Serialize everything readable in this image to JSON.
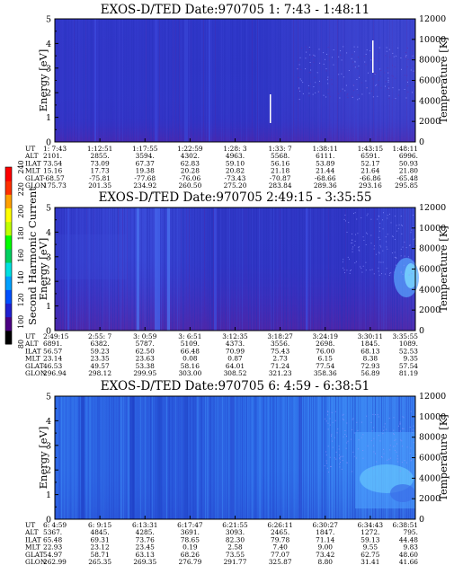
{
  "colors": {
    "background": "#ffffff",
    "spectrogram_base": "#2a2fc8",
    "spectrogram_low": "#5a1fa0",
    "spectrogram_bright": "#2e78f0",
    "line_white": "#ffffff"
  },
  "colorbar": {
    "label": "Second Harmonic Current",
    "ticks": [
      "240",
      "220",
      "200",
      "180",
      "160",
      "140",
      "120",
      "100",
      "80"
    ],
    "min": 80,
    "max": 240,
    "colors": [
      "#000000",
      "#4b0082",
      "#2020d0",
      "#0050ff",
      "#00a0ff",
      "#00e0e0",
      "#00d060",
      "#00ff00",
      "#c0ff00",
      "#ffff00",
      "#ffa000",
      "#ff3000",
      "#ff0000"
    ]
  },
  "chart_data": [
    {
      "type": "heatmap",
      "title": "EXOS-D/TED   Date:970705   1: 7:43 - 1:48:11",
      "ylabel": "Energy [eV]",
      "y2label": "Temperature [K]",
      "ylim": [
        0,
        5
      ],
      "y2lim": [
        0,
        12000
      ],
      "yticks": [
        "0",
        "1",
        "2",
        "3",
        "4",
        "5"
      ],
      "y2ticks": [
        "0",
        "2000",
        "4000",
        "6000",
        "8000",
        "10000",
        "12000"
      ],
      "table_labels": [
        "UT",
        "ALT",
        "ILAT",
        "MLT",
        "GLAT",
        "GLON"
      ],
      "table_columns": [
        [
          "1: 7:43",
          "2101.",
          "73.54",
          "15.16",
          "-68.57",
          "175.73"
        ],
        [
          "1:12:51",
          "2855.",
          "73.09",
          "17.73",
          "-75.81",
          "201.35"
        ],
        [
          "1:17:55",
          "3594.",
          "67.37",
          "19.38",
          "-77.68",
          "234.92"
        ],
        [
          "1:22:59",
          "4302.",
          "62.83",
          "20.28",
          "-76.06",
          "260.50"
        ],
        [
          "1:28: 3",
          "4963.",
          "59.10",
          "20.82",
          "-73.43",
          "275.20"
        ],
        [
          "1:33: 7",
          "5568.",
          "56.16",
          "21.18",
          "-70.87",
          "283.84"
        ],
        [
          "1:38:11",
          "6111.",
          "53.89",
          "21.44",
          "-68.66",
          "289.36"
        ],
        [
          "1:43:15",
          "6591.",
          "52.17",
          "21.64",
          "-66.86",
          "293.16"
        ],
        [
          "1:48:11",
          "6996.",
          "50.93",
          "21.80",
          "-65.48",
          "295.85"
        ]
      ],
      "temperature_trace": [
        {
          "t": "1:33: 7",
          "y_from": 0.2,
          "y_to": 1.7,
          "segment": "short"
        },
        {
          "t": "1:44:20",
          "y_from": 3.0,
          "y_to": 4.6,
          "segment": "short"
        }
      ]
    },
    {
      "type": "heatmap",
      "title": "EXOS-D/TED   Date:970705   2:49:15 - 3:35:55",
      "ylabel": "Energy [eV]",
      "y2label": "Temperature [K]",
      "ylim": [
        0,
        5
      ],
      "y2lim": [
        0,
        12000
      ],
      "yticks": [
        "0",
        "1",
        "2",
        "3",
        "4",
        "5"
      ],
      "y2ticks": [
        "0",
        "2000",
        "4000",
        "6000",
        "8000",
        "10000",
        "12000"
      ],
      "table_labels": [
        "UT",
        "ALT",
        "ILAT",
        "MLT",
        "GLAT",
        "GLON"
      ],
      "table_columns": [
        [
          "2:49:15",
          "6891.",
          "56.57",
          "23.14",
          "46.53",
          "296.94"
        ],
        [
          "2:55: 7",
          "6382.",
          "59.23",
          "23.35",
          "49.57",
          "298.12"
        ],
        [
          "3: 0:59",
          "5787.",
          "62.50",
          "23.63",
          "53.38",
          "299.95"
        ],
        [
          "3: 6:51",
          "5109.",
          "66.48",
          "0.08",
          "58.16",
          "303.00"
        ],
        [
          "3:12:35",
          "4373.",
          "70.99",
          "0.87",
          "64.01",
          "308.52"
        ],
        [
          "3:18:27",
          "3556.",
          "75.43",
          "2.73",
          "71.24",
          "321.23"
        ],
        [
          "3:24:19",
          "2698.",
          "76.00",
          "6.15",
          "77.54",
          "358.36"
        ],
        [
          "3:30:11",
          "1845.",
          "68.13",
          "8.38",
          "72.93",
          "56.89"
        ],
        [
          "3:35:55",
          "1089.",
          "52.53",
          "9.35",
          "57.54",
          "81.19"
        ]
      ]
    },
    {
      "type": "heatmap",
      "title": "EXOS-D/TED   Date:970705   6: 4:59 - 6:38:51",
      "ylabel": "Energy [eV]",
      "y2label": "Temperature [K]",
      "ylim": [
        0,
        5
      ],
      "y2lim": [
        0,
        12000
      ],
      "yticks": [
        "0",
        "1",
        "2",
        "3",
        "4",
        "5"
      ],
      "y2ticks": [
        "0",
        "2000",
        "4000",
        "6000",
        "8000",
        "10000",
        "12000"
      ],
      "table_labels": [
        "UT",
        "ALT",
        "ILAT",
        "MLT",
        "GLAT",
        "GLON"
      ],
      "table_columns": [
        [
          "6: 4:59",
          "5367.",
          "65.48",
          "22.93",
          "54.97",
          "262.99"
        ],
        [
          "6: 9:15",
          "4845.",
          "69.31",
          "23.12",
          "58.71",
          "265.35"
        ],
        [
          "6:13:31",
          "4285.",
          "73.76",
          "23.45",
          "63.13",
          "269.35"
        ],
        [
          "6:17:47",
          "3691.",
          "78.65",
          "0.19",
          "68.26",
          "276.79"
        ],
        [
          "6:21:55",
          "3093.",
          "82.30",
          "2.58",
          "73.55",
          "291.77"
        ],
        [
          "6:26:11",
          "2465.",
          "79.78",
          "7.40",
          "77.07",
          "325.87"
        ],
        [
          "6:30:27",
          "1847.",
          "71.14",
          "9.00",
          "73.42",
          "8.80"
        ],
        [
          "6:34:43",
          "1272.",
          "59.13",
          "9.55",
          "62.75",
          "31.41"
        ],
        [
          "6:38:51",
          "795.",
          "44.48",
          "9.83",
          "48.60",
          "41.66"
        ]
      ]
    }
  ]
}
